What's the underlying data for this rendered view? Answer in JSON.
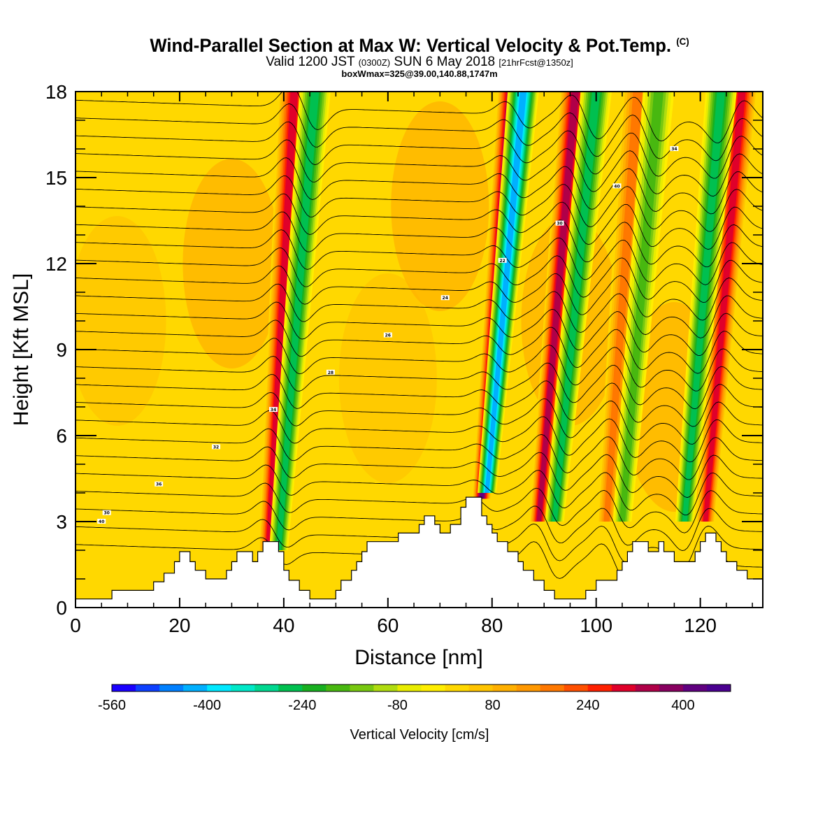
{
  "header": {
    "title": "Wind-Parallel Section at Max W: Vertical Velocity & Pot.Temp.",
    "copyright": "(C)",
    "valid_prefix": "Valid 1200 JST",
    "valid_utc": "(0300Z)",
    "valid_date": "SUN 6 May 2018",
    "forecast": "[21hrFcst@1350z]",
    "box_info": "boxWmax=325@39.00,140.88,1747m"
  },
  "chart_data": {
    "type": "heatmap",
    "title": "Wind-Parallel Section at Max W: Vertical Velocity & Pot.Temp.",
    "xlabel": "Distance [nm]",
    "ylabel": "Height [Kft MSL]",
    "xlim": [
      0,
      132
    ],
    "ylim": [
      0,
      18
    ],
    "x_ticks": [
      0,
      20,
      40,
      60,
      80,
      100,
      120
    ],
    "y_ticks": [
      0,
      3,
      6,
      9,
      12,
      15,
      18
    ],
    "colorbar": {
      "label": "Vertical Velocity [cm/s]",
      "min": -560,
      "max": 480,
      "step": 40,
      "tick_values": [
        -560,
        -400,
        -240,
        -80,
        80,
        240,
        400
      ],
      "colors": [
        "#1a00ff",
        "#0d40ff",
        "#0080ff",
        "#00b0ff",
        "#00e8ff",
        "#00e8c8",
        "#00d890",
        "#00c050",
        "#18b020",
        "#48b810",
        "#78c810",
        "#b0dc10",
        "#e8ec00",
        "#ffee00",
        "#ffd800",
        "#ffc400",
        "#ffb000",
        "#ff9800",
        "#ff7800",
        "#ff5000",
        "#ff2000",
        "#e0002a",
        "#b00048",
        "#880060",
        "#600080",
        "#4a0090"
      ]
    },
    "terrain": [
      [
        0,
        0.3
      ],
      [
        7,
        0.3
      ],
      [
        7,
        0.6
      ],
      [
        15,
        0.6
      ],
      [
        15,
        0.9
      ],
      [
        17,
        0.9
      ],
      [
        17,
        1.2
      ],
      [
        19,
        1.2
      ],
      [
        19,
        1.6
      ],
      [
        20,
        1.6
      ],
      [
        20,
        1.95
      ],
      [
        22,
        1.95
      ],
      [
        22,
        1.6
      ],
      [
        23,
        1.6
      ],
      [
        23,
        1.3
      ],
      [
        25,
        1.3
      ],
      [
        25,
        1.0
      ],
      [
        29,
        1.0
      ],
      [
        29,
        1.3
      ],
      [
        30,
        1.3
      ],
      [
        30,
        1.6
      ],
      [
        31,
        1.6
      ],
      [
        31,
        1.95
      ],
      [
        34,
        1.95
      ],
      [
        34,
        1.6
      ],
      [
        35,
        1.6
      ],
      [
        35,
        1.95
      ],
      [
        36,
        1.95
      ],
      [
        36,
        2.3
      ],
      [
        39,
        2.3
      ],
      [
        39,
        1.95
      ],
      [
        40,
        1.95
      ],
      [
        40,
        1.3
      ],
      [
        41,
        1.3
      ],
      [
        41,
        0.95
      ],
      [
        43,
        0.95
      ],
      [
        43,
        0.6
      ],
      [
        45,
        0.6
      ],
      [
        45,
        0.3
      ],
      [
        50,
        0.3
      ],
      [
        50,
        0.6
      ],
      [
        51,
        0.6
      ],
      [
        51,
        0.95
      ],
      [
        53,
        0.95
      ],
      [
        53,
        1.3
      ],
      [
        54,
        1.3
      ],
      [
        54,
        1.6
      ],
      [
        55,
        1.6
      ],
      [
        55,
        1.95
      ],
      [
        56,
        1.95
      ],
      [
        56,
        2.3
      ],
      [
        62,
        2.3
      ],
      [
        62,
        2.6
      ],
      [
        66,
        2.6
      ],
      [
        66,
        2.9
      ],
      [
        67,
        2.9
      ],
      [
        67,
        3.2
      ],
      [
        69,
        3.2
      ],
      [
        69,
        2.9
      ],
      [
        70,
        2.9
      ],
      [
        70,
        2.6
      ],
      [
        72,
        2.6
      ],
      [
        72,
        2.9
      ],
      [
        74,
        2.9
      ],
      [
        74,
        3.5
      ],
      [
        75,
        3.5
      ],
      [
        75,
        3.85
      ],
      [
        78,
        3.85
      ],
      [
        78,
        3.2
      ],
      [
        79,
        3.2
      ],
      [
        79,
        2.9
      ],
      [
        80,
        2.9
      ],
      [
        80,
        2.6
      ],
      [
        81,
        2.6
      ],
      [
        81,
        2.3
      ],
      [
        83,
        2.3
      ],
      [
        83,
        1.95
      ],
      [
        85,
        1.95
      ],
      [
        85,
        1.6
      ],
      [
        86,
        1.6
      ],
      [
        86,
        1.3
      ],
      [
        88,
        1.3
      ],
      [
        88,
        0.95
      ],
      [
        90,
        0.95
      ],
      [
        90,
        0.6
      ],
      [
        92,
        0.6
      ],
      [
        92,
        0.3
      ],
      [
        98,
        0.3
      ],
      [
        98,
        0.6
      ],
      [
        100,
        0.6
      ],
      [
        100,
        0.95
      ],
      [
        104,
        0.95
      ],
      [
        104,
        1.3
      ],
      [
        105,
        1.3
      ],
      [
        105,
        1.6
      ],
      [
        106,
        1.6
      ],
      [
        106,
        1.95
      ],
      [
        107,
        1.95
      ],
      [
        107,
        2.3
      ],
      [
        110,
        2.3
      ],
      [
        110,
        1.95
      ],
      [
        112,
        1.95
      ],
      [
        112,
        2.3
      ],
      [
        113,
        2.3
      ],
      [
        113,
        1.95
      ],
      [
        115,
        1.95
      ],
      [
        115,
        1.6
      ],
      [
        119,
        1.6
      ],
      [
        119,
        1.95
      ],
      [
        120,
        1.95
      ],
      [
        120,
        2.3
      ],
      [
        121,
        2.3
      ],
      [
        121,
        2.6
      ],
      [
        123,
        2.6
      ],
      [
        123,
        2.3
      ],
      [
        124,
        2.3
      ],
      [
        124,
        1.95
      ],
      [
        125,
        1.95
      ],
      [
        125,
        1.6
      ],
      [
        127,
        1.6
      ],
      [
        127,
        1.3
      ],
      [
        129,
        1.3
      ],
      [
        129,
        1.0
      ],
      [
        132,
        1.0
      ]
    ],
    "updraft_bands": [
      {
        "x": [
          42,
          37
        ],
        "y": [
          18,
          2
        ],
        "value": 320
      },
      {
        "x": [
          84,
          78
        ],
        "y": [
          18,
          3.8
        ],
        "value": 440
      },
      {
        "x": [
          96,
          89
        ],
        "y": [
          18,
          3
        ],
        "value": 360
      },
      {
        "x": [
          108,
          102
        ],
        "y": [
          18,
          3
        ],
        "value": 200
      },
      {
        "x": [
          128,
          121
        ],
        "y": [
          18,
          3
        ],
        "value": 320
      }
    ],
    "downdraft_bands": [
      {
        "x": [
          46,
          39
        ],
        "y": [
          18,
          2
        ],
        "value": -280
      },
      {
        "x": [
          86,
          79
        ],
        "y": [
          18,
          4
        ],
        "value": -440
      },
      {
        "x": [
          100,
          92
        ],
        "y": [
          18,
          3
        ],
        "value": -280
      },
      {
        "x": [
          112,
          105
        ],
        "y": [
          18,
          3
        ],
        "value": -200
      },
      {
        "x": [
          124,
          117
        ],
        "y": [
          18,
          3
        ],
        "value": -280
      }
    ],
    "isentropes": {
      "count": 26,
      "base_height": 2.2,
      "spacing": 0.62,
      "labels": [
        "40",
        "36",
        "32",
        "34",
        "28",
        "26",
        "24",
        "22",
        "30",
        "40",
        "34",
        "30"
      ]
    }
  },
  "icons": {
    "note": "none"
  }
}
